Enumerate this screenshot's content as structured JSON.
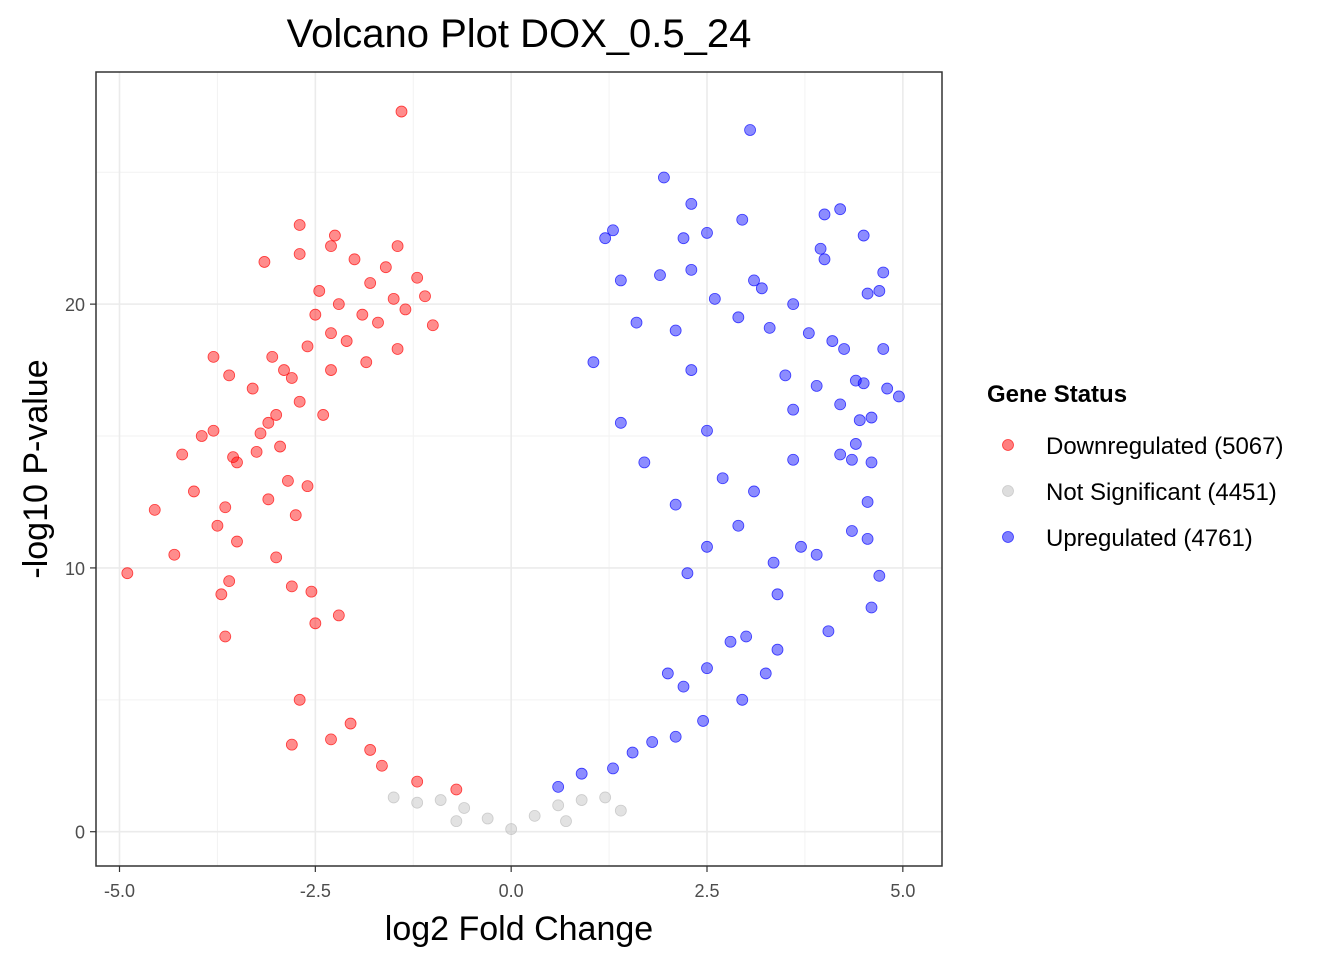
{
  "chart_data": {
    "type": "scatter",
    "title": "Volcano Plot DOX_0.5_24",
    "xlabel": "log2 Fold Change",
    "ylabel": "-log10 P-value",
    "xlim": [
      -5.3,
      5.5
    ],
    "ylim": [
      -1.3,
      28.8
    ],
    "x_ticks": [
      -5.0,
      -2.5,
      0.0,
      2.5,
      5.0
    ],
    "x_tick_labels": [
      "-5.0",
      "-2.5",
      "0.0",
      "2.5",
      "5.0"
    ],
    "y_ticks": [
      0,
      10,
      20
    ],
    "y_tick_labels": [
      "0",
      "10",
      "20"
    ],
    "grid": true,
    "legend_position": "right",
    "legend": {
      "title": "Gene Status",
      "entries": [
        {
          "label": "Downregulated (5067)",
          "color": "#ff0000"
        },
        {
          "label": "Not Significant (4451)",
          "color": "#bebebe"
        },
        {
          "label": "Upregulated (4761)",
          "color": "#0000ff"
        }
      ]
    },
    "series": [
      {
        "name": "Downregulated",
        "count": 5067,
        "color": "#ff0000",
        "points": [
          [
            -1.4,
            27.3
          ],
          [
            -2.7,
            23.0
          ],
          [
            -2.25,
            22.6
          ],
          [
            -1.45,
            22.2
          ],
          [
            -2.7,
            21.9
          ],
          [
            -3.15,
            21.6
          ],
          [
            -2.3,
            22.2
          ],
          [
            -2.0,
            21.7
          ],
          [
            -1.6,
            21.4
          ],
          [
            -1.2,
            21.0
          ],
          [
            -2.45,
            20.5
          ],
          [
            -1.8,
            20.8
          ],
          [
            -2.2,
            20.0
          ],
          [
            -1.5,
            20.2
          ],
          [
            -1.1,
            20.3
          ],
          [
            -2.5,
            19.6
          ],
          [
            -1.9,
            19.6
          ],
          [
            -1.35,
            19.8
          ],
          [
            -2.6,
            18.4
          ],
          [
            -2.3,
            18.9
          ],
          [
            -1.7,
            19.3
          ],
          [
            -1.0,
            19.2
          ],
          [
            -2.1,
            18.6
          ],
          [
            -1.45,
            18.3
          ],
          [
            -3.05,
            18.0
          ],
          [
            -2.9,
            17.5
          ],
          [
            -3.6,
            17.3
          ],
          [
            -3.8,
            18.0
          ],
          [
            -2.8,
            17.2
          ],
          [
            -2.3,
            17.5
          ],
          [
            -1.85,
            17.8
          ],
          [
            -3.3,
            16.8
          ],
          [
            -2.7,
            16.3
          ],
          [
            -3.0,
            15.8
          ],
          [
            -3.8,
            15.2
          ],
          [
            -3.95,
            15.0
          ],
          [
            -3.1,
            15.5
          ],
          [
            -3.2,
            15.1
          ],
          [
            -2.95,
            14.6
          ],
          [
            -2.4,
            15.8
          ],
          [
            -4.2,
            14.3
          ],
          [
            -3.55,
            14.2
          ],
          [
            -3.5,
            14.0
          ],
          [
            -3.25,
            14.4
          ],
          [
            -2.85,
            13.3
          ],
          [
            -4.05,
            12.9
          ],
          [
            -3.65,
            12.3
          ],
          [
            -4.55,
            12.2
          ],
          [
            -3.1,
            12.6
          ],
          [
            -2.6,
            13.1
          ],
          [
            -2.75,
            12.0
          ],
          [
            -3.75,
            11.6
          ],
          [
            -3.5,
            11.0
          ],
          [
            -4.3,
            10.5
          ],
          [
            -3.0,
            10.4
          ],
          [
            -2.8,
            9.3
          ],
          [
            -3.6,
            9.5
          ],
          [
            -3.7,
            9.0
          ],
          [
            -4.9,
            9.8
          ],
          [
            -2.55,
            9.1
          ],
          [
            -3.65,
            7.4
          ],
          [
            -2.2,
            8.2
          ],
          [
            -2.5,
            7.9
          ],
          [
            -2.7,
            5.0
          ],
          [
            -2.8,
            3.3
          ],
          [
            -2.05,
            4.1
          ],
          [
            -1.8,
            3.1
          ],
          [
            -2.3,
            3.5
          ],
          [
            -1.65,
            2.5
          ],
          [
            -1.2,
            1.9
          ],
          [
            -0.7,
            1.6
          ]
        ]
      },
      {
        "name": "Not Significant",
        "count": 4451,
        "color": "#bebebe",
        "points": [
          [
            -1.5,
            1.3
          ],
          [
            -1.2,
            1.1
          ],
          [
            -0.9,
            1.2
          ],
          [
            -0.6,
            0.9
          ],
          [
            -0.3,
            0.5
          ],
          [
            0.0,
            0.1
          ],
          [
            0.3,
            0.6
          ],
          [
            0.6,
            1.0
          ],
          [
            0.9,
            1.2
          ],
          [
            1.2,
            1.3
          ],
          [
            1.4,
            0.8
          ],
          [
            -0.7,
            0.4
          ],
          [
            0.7,
            0.4
          ]
        ]
      },
      {
        "name": "Upregulated",
        "count": 4761,
        "color": "#0000ff",
        "points": [
          [
            3.05,
            26.6
          ],
          [
            1.95,
            24.8
          ],
          [
            2.3,
            23.8
          ],
          [
            4.2,
            23.6
          ],
          [
            4.0,
            23.4
          ],
          [
            2.95,
            23.2
          ],
          [
            1.3,
            22.8
          ],
          [
            2.5,
            22.7
          ],
          [
            2.2,
            22.5
          ],
          [
            1.2,
            22.5
          ],
          [
            4.5,
            22.6
          ],
          [
            3.95,
            22.1
          ],
          [
            4.0,
            21.7
          ],
          [
            2.3,
            21.3
          ],
          [
            1.9,
            21.1
          ],
          [
            1.4,
            20.9
          ],
          [
            3.1,
            20.9
          ],
          [
            4.75,
            21.2
          ],
          [
            3.2,
            20.6
          ],
          [
            4.7,
            20.5
          ],
          [
            4.55,
            20.4
          ],
          [
            2.6,
            20.2
          ],
          [
            3.6,
            20.0
          ],
          [
            2.9,
            19.5
          ],
          [
            1.6,
            19.3
          ],
          [
            3.3,
            19.1
          ],
          [
            2.1,
            19.0
          ],
          [
            3.8,
            18.9
          ],
          [
            4.1,
            18.6
          ],
          [
            4.25,
            18.3
          ],
          [
            4.75,
            18.3
          ],
          [
            1.05,
            17.8
          ],
          [
            2.3,
            17.5
          ],
          [
            3.5,
            17.3
          ],
          [
            4.4,
            17.1
          ],
          [
            4.5,
            17.0
          ],
          [
            3.9,
            16.9
          ],
          [
            4.8,
            16.8
          ],
          [
            4.95,
            16.5
          ],
          [
            4.2,
            16.2
          ],
          [
            3.6,
            16.0
          ],
          [
            4.6,
            15.7
          ],
          [
            4.45,
            15.6
          ],
          [
            1.4,
            15.5
          ],
          [
            2.5,
            15.2
          ],
          [
            4.4,
            14.7
          ],
          [
            4.2,
            14.3
          ],
          [
            3.6,
            14.1
          ],
          [
            4.6,
            14.0
          ],
          [
            4.35,
            14.1
          ],
          [
            1.7,
            14.0
          ],
          [
            2.7,
            13.4
          ],
          [
            3.1,
            12.9
          ],
          [
            4.55,
            12.5
          ],
          [
            2.1,
            12.4
          ],
          [
            2.9,
            11.6
          ],
          [
            4.35,
            11.4
          ],
          [
            4.55,
            11.1
          ],
          [
            2.5,
            10.8
          ],
          [
            3.7,
            10.8
          ],
          [
            3.9,
            10.5
          ],
          [
            3.35,
            10.2
          ],
          [
            4.7,
            9.7
          ],
          [
            2.25,
            9.8
          ],
          [
            3.4,
            9.0
          ],
          [
            4.6,
            8.5
          ],
          [
            4.05,
            7.6
          ],
          [
            3.0,
            7.4
          ],
          [
            2.8,
            7.2
          ],
          [
            3.4,
            6.9
          ],
          [
            2.5,
            6.2
          ],
          [
            3.25,
            6.0
          ],
          [
            2.0,
            6.0
          ],
          [
            2.2,
            5.5
          ],
          [
            2.95,
            5.0
          ],
          [
            2.45,
            4.2
          ],
          [
            2.1,
            3.6
          ],
          [
            1.8,
            3.4
          ],
          [
            1.55,
            3.0
          ],
          [
            1.3,
            2.4
          ],
          [
            0.9,
            2.2
          ],
          [
            0.6,
            1.7
          ]
        ]
      }
    ]
  }
}
